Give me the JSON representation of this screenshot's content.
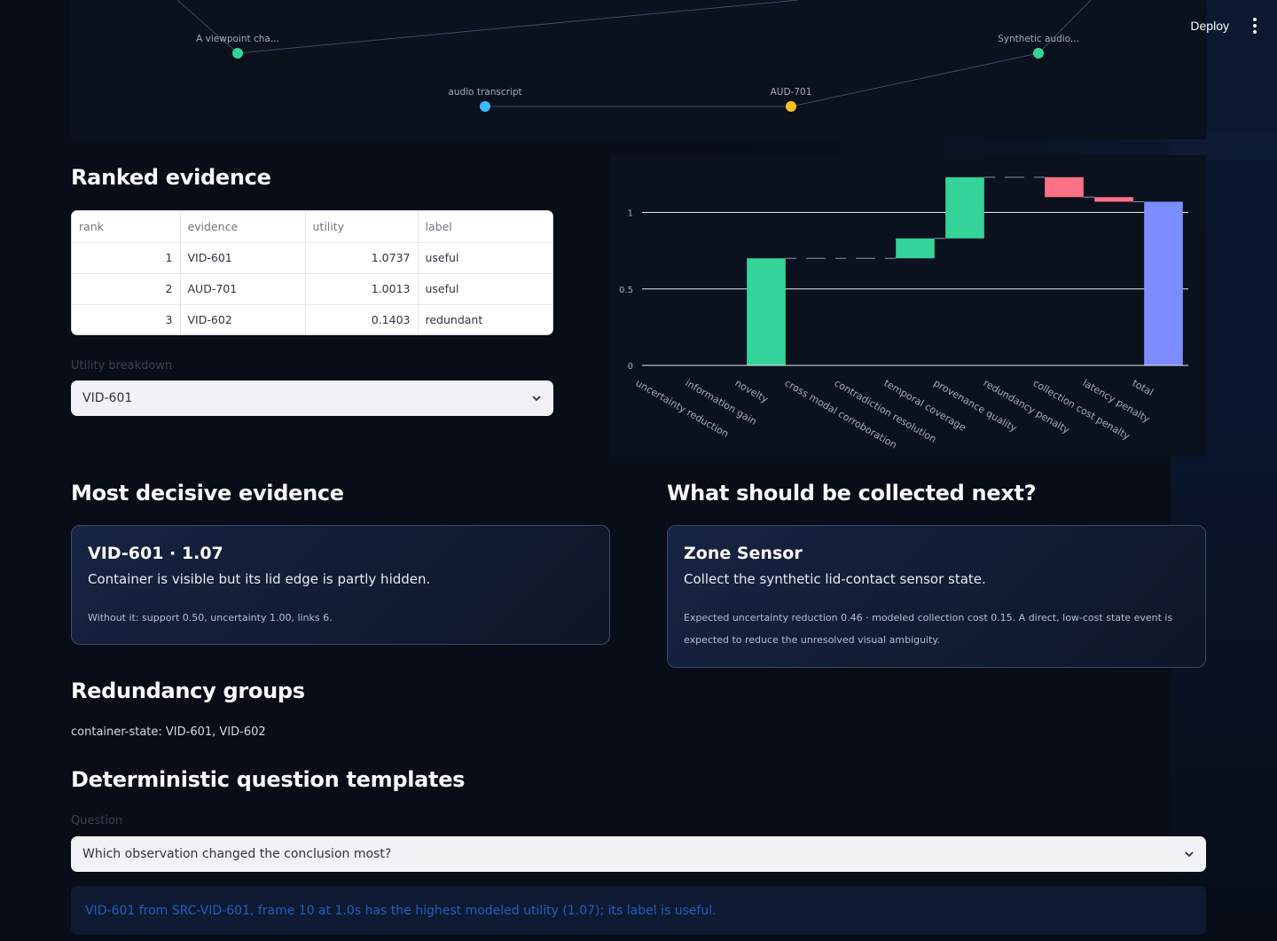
{
  "header": {
    "deploy_label": "Deploy",
    "menu_icon": "kebab-icon"
  },
  "graph": {
    "nodes": [
      {
        "label": "A viewpoint cha...",
        "color": "#34d399"
      },
      {
        "label": "Synthetic audio...",
        "color": "#34d399"
      },
      {
        "label": "audio transcript",
        "color": "#38bdf8"
      },
      {
        "label": "AUD-701",
        "color": "#fbbf24"
      }
    ]
  },
  "ranked": {
    "heading": "Ranked evidence",
    "columns": [
      "rank",
      "evidence",
      "utility",
      "label"
    ],
    "rows": [
      [
        "1",
        "VID-601",
        "1.0737",
        "useful"
      ],
      [
        "2",
        "AUD-701",
        "1.0013",
        "useful"
      ],
      [
        "3",
        "VID-602",
        "0.1403",
        "redundant"
      ]
    ]
  },
  "breakdown": {
    "label": "Utility breakdown",
    "selected": "VID-601"
  },
  "chart_data": {
    "type": "waterfall",
    "categories": [
      "uncertainty reduction",
      "information gain",
      "novelty",
      "cross modal corroboration",
      "contradiction resolution",
      "temporal coverage",
      "provenance quality",
      "redundancy penalty",
      "collection cost penalty",
      "latency penalty",
      "total"
    ],
    "deltas": [
      0.0,
      0.0,
      0.7,
      0.0,
      0.0,
      0.13,
      0.4,
      0.0,
      -0.13,
      -0.03,
      1.07
    ],
    "measure": [
      "relative",
      "relative",
      "relative",
      "relative",
      "relative",
      "relative",
      "relative",
      "relative",
      "relative",
      "relative",
      "total"
    ],
    "y_ticks": [
      "0",
      "0.5",
      "1"
    ],
    "ylim": [
      0,
      1.2
    ],
    "colors": {
      "increase": "#34d399",
      "decrease": "#fb7185",
      "total": "#7b8cff"
    }
  },
  "decisive": {
    "heading": "Most decisive evidence",
    "title": "VID-601 · 1.07",
    "desc": "Container is visible but its lid edge is partly hidden.",
    "note": "Without it: support 0.50, uncertainty 1.00, links 6."
  },
  "next": {
    "heading": "What should be collected next?",
    "title": "Zone Sensor",
    "desc": "Collect the synthetic lid-contact sensor state.",
    "note": "Expected uncertainty reduction 0.46 · modeled collection cost 0.15. A direct, low-cost state event is expected to reduce the unresolved visual ambiguity."
  },
  "redundancy": {
    "heading": "Redundancy groups",
    "text": "container-state: VID-601, VID-602"
  },
  "templates": {
    "heading": "Deterministic question templates",
    "question_label": "Question",
    "question_selected": "Which observation changed the conclusion most?",
    "answer": "VID-601 from SRC-VID-601, frame 10 at 1.0s has the highest modeled utility (1.07); its label is useful."
  }
}
